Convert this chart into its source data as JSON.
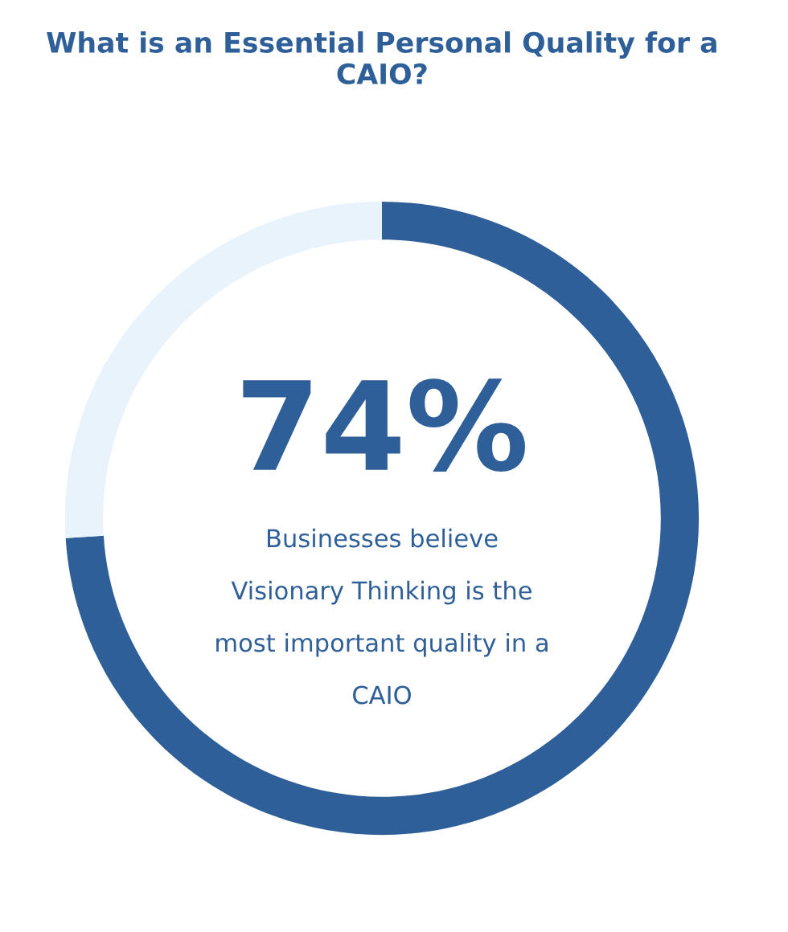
{
  "chart_data": {
    "type": "donut",
    "title": "What is an Essential Personal Quality for a CAIO?",
    "categories": [
      null,
      null
    ],
    "values": [
      74,
      26
    ],
    "colors": [
      "#2f5f98",
      "#e8f3fc"
    ],
    "value_labels": [
      "74%",
      null
    ],
    "annotations": [
      "Businesses believe",
      "Visionary Thinking is the",
      "most important quality in a",
      "CAIO"
    ]
  }
}
